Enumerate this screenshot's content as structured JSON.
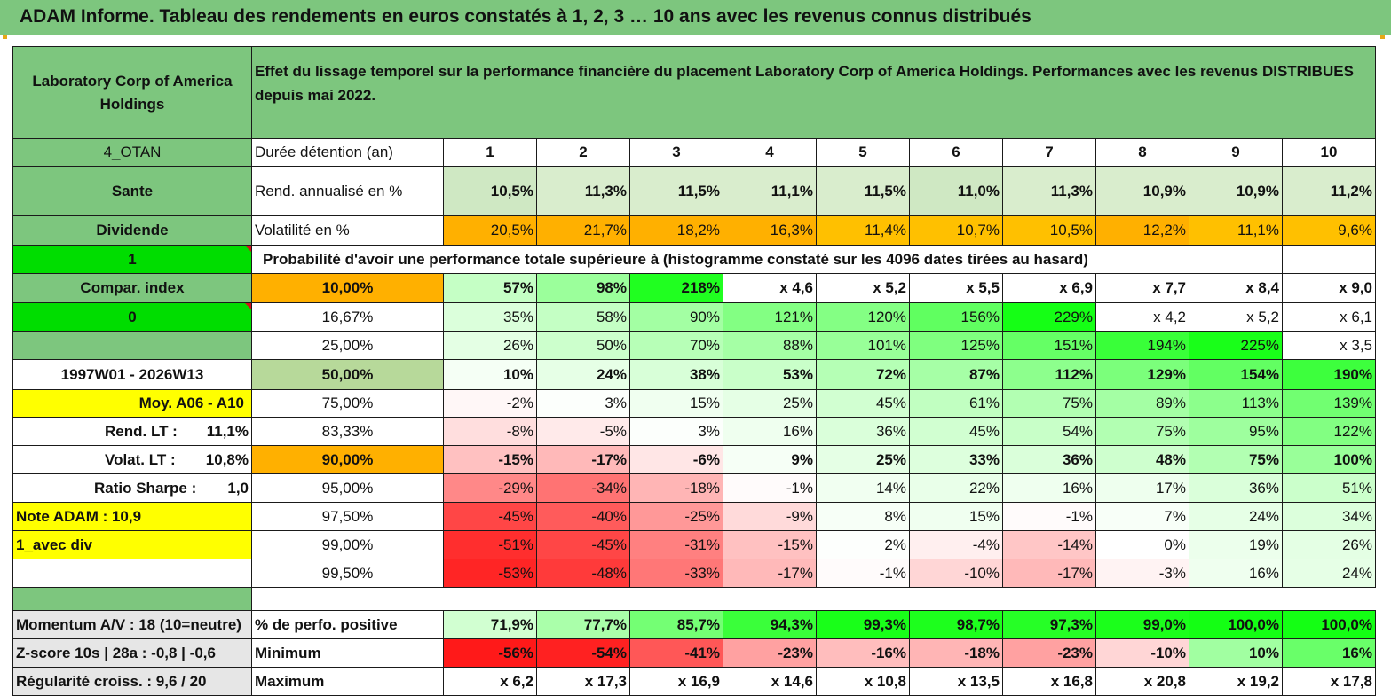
{
  "title": "ADAM Informe. Tableau des rendements en euros constatés à 1, 2, 3 … 10 ans avec les revenus connus distribués",
  "company": "Laboratory Corp of America Holdings",
  "description": "Effet du lissage temporel sur la performance financière du placement Laboratory Corp of America Holdings. Performances avec les revenus DISTRIBUES depuis mai 2022.",
  "left": {
    "code": "4_OTAN",
    "sector": "Sante",
    "type": "Dividende",
    "one": "1",
    "compar": "Compar. index",
    "zero": "0",
    "period": "1997W01 - 2026W13",
    "moy": "Moy. A06 - A10",
    "rend_lt_label": "Rend. LT :",
    "rend_lt_value": "11,1%",
    "volat_lt_label": "Volat. LT :",
    "volat_lt_value": "10,8%",
    "sharpe_label": "Ratio Sharpe :",
    "sharpe_value": "1,0",
    "note": "Note ADAM : 10,9",
    "avec_div": "1_avec div",
    "momentum": "Momentum A/V : 18 (10=neutre)",
    "zscore": "Z-score 10s | 28a : -0,8 | -0,6",
    "regularite": "Régularité croiss. : 9,6 / 20"
  },
  "row_labels": {
    "duree": "Durée détention (an)",
    "rend": "Rend. annualisé en %",
    "vol": "Volatilité en %",
    "proba": "Probabilité d'avoir une performance totale supérieure à (histogramme constaté sur les 4096 dates tirées au hasard)",
    "positive": "% de perfo. positive",
    "minimum": "Minimum",
    "maximum": "Maximum"
  },
  "years": [
    "1",
    "2",
    "3",
    "4",
    "5",
    "6",
    "7",
    "8",
    "9",
    "10"
  ],
  "rend": [
    "10,5%",
    "11,3%",
    "11,5%",
    "11,1%",
    "11,5%",
    "11,0%",
    "11,3%",
    "10,9%",
    "10,9%",
    "11,2%"
  ],
  "vol": [
    "20,5%",
    "21,7%",
    "18,2%",
    "16,3%",
    "11,4%",
    "10,7%",
    "10,5%",
    "12,2%",
    "11,1%",
    "9,6%"
  ],
  "prob_rows": [
    {
      "p": "10,00%",
      "v": [
        "57%",
        "98%",
        "218%",
        "x 4,6",
        "x 5,2",
        "x 5,5",
        "x 6,9",
        "x 7,7",
        "x 8,4",
        "x 9,0"
      ]
    },
    {
      "p": "16,67%",
      "v": [
        "35%",
        "58%",
        "90%",
        "121%",
        "120%",
        "156%",
        "229%",
        "x 4,2",
        "x 5,2",
        "x 6,1"
      ]
    },
    {
      "p": "25,00%",
      "v": [
        "26%",
        "50%",
        "70%",
        "88%",
        "101%",
        "125%",
        "151%",
        "194%",
        "225%",
        "x 3,5"
      ]
    },
    {
      "p": "50,00%",
      "v": [
        "10%",
        "24%",
        "38%",
        "53%",
        "72%",
        "87%",
        "112%",
        "129%",
        "154%",
        "190%"
      ]
    },
    {
      "p": "75,00%",
      "v": [
        "-2%",
        "3%",
        "15%",
        "25%",
        "45%",
        "61%",
        "75%",
        "89%",
        "113%",
        "139%"
      ]
    },
    {
      "p": "83,33%",
      "v": [
        "-8%",
        "-5%",
        "3%",
        "16%",
        "36%",
        "45%",
        "54%",
        "75%",
        "95%",
        "122%"
      ]
    },
    {
      "p": "90,00%",
      "v": [
        "-15%",
        "-17%",
        "-6%",
        "9%",
        "25%",
        "33%",
        "36%",
        "48%",
        "75%",
        "100%"
      ]
    },
    {
      "p": "95,00%",
      "v": [
        "-29%",
        "-34%",
        "-18%",
        "-1%",
        "14%",
        "22%",
        "16%",
        "17%",
        "36%",
        "51%"
      ]
    },
    {
      "p": "97,50%",
      "v": [
        "-45%",
        "-40%",
        "-25%",
        "-9%",
        "8%",
        "15%",
        "-1%",
        "7%",
        "24%",
        "34%"
      ]
    },
    {
      "p": "99,00%",
      "v": [
        "-51%",
        "-45%",
        "-31%",
        "-15%",
        "2%",
        "-4%",
        "-14%",
        "0%",
        "19%",
        "26%"
      ]
    },
    {
      "p": "99,50%",
      "v": [
        "-53%",
        "-48%",
        "-33%",
        "-17%",
        "-1%",
        "-10%",
        "-17%",
        "-3%",
        "16%",
        "24%"
      ]
    }
  ],
  "positive": [
    "71,9%",
    "77,7%",
    "85,7%",
    "94,3%",
    "99,3%",
    "98,7%",
    "97,3%",
    "99,0%",
    "100,0%",
    "100,0%"
  ],
  "minimum": [
    "-56%",
    "-54%",
    "-41%",
    "-23%",
    "-16%",
    "-18%",
    "-23%",
    "-10%",
    "10%",
    "16%"
  ],
  "maximum": [
    "x 6,2",
    "x 17,3",
    "x 16,9",
    "x 14,6",
    "x 10,8",
    "x 13,5",
    "x 16,8",
    "x 20,8",
    "x 19,2",
    "x 17,8"
  ],
  "colors": {
    "header_green": "#7dc67e",
    "yellow": "#ffff00",
    "orange": "#ffb000",
    "bright_green": "#00dd00",
    "red_text": "#d4101a"
  }
}
